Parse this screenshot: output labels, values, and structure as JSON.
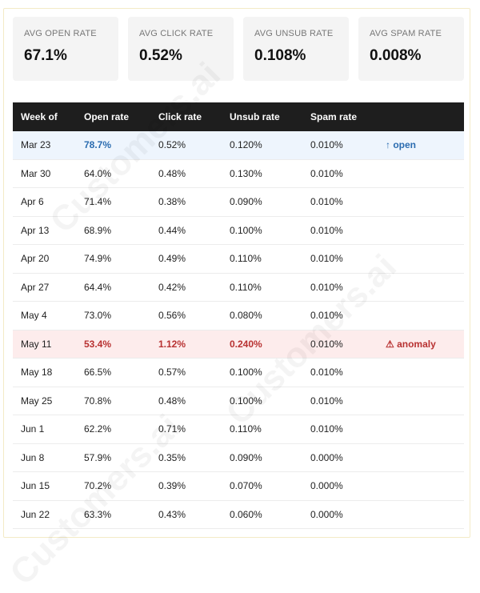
{
  "cards": [
    {
      "label": "AVG OPEN RATE",
      "value": "67.1%"
    },
    {
      "label": "AVG CLICK RATE",
      "value": "0.52%"
    },
    {
      "label": "AVG UNSUB RATE",
      "value": "0.108%"
    },
    {
      "label": "AVG SPAM RATE",
      "value": "0.008%"
    }
  ],
  "table": {
    "headers": [
      "Week of",
      "Open rate",
      "Click rate",
      "Unsub rate",
      "Spam rate",
      ""
    ],
    "rows": [
      {
        "week": "Mar 23",
        "open": "78.7%",
        "click": "0.52%",
        "unsub": "0.120%",
        "spam": "0.010%",
        "flag": "↑ open"
      },
      {
        "week": "Mar 30",
        "open": "64.0%",
        "click": "0.48%",
        "unsub": "0.130%",
        "spam": "0.010%",
        "flag": ""
      },
      {
        "week": "Apr 6",
        "open": "71.4%",
        "click": "0.38%",
        "unsub": "0.090%",
        "spam": "0.010%",
        "flag": ""
      },
      {
        "week": "Apr 13",
        "open": "68.9%",
        "click": "0.44%",
        "unsub": "0.100%",
        "spam": "0.010%",
        "flag": ""
      },
      {
        "week": "Apr 20",
        "open": "74.9%",
        "click": "0.49%",
        "unsub": "0.110%",
        "spam": "0.010%",
        "flag": ""
      },
      {
        "week": "Apr 27",
        "open": "64.4%",
        "click": "0.42%",
        "unsub": "0.110%",
        "spam": "0.010%",
        "flag": ""
      },
      {
        "week": "May 4",
        "open": "73.0%",
        "click": "0.56%",
        "unsub": "0.080%",
        "spam": "0.010%",
        "flag": ""
      },
      {
        "week": "May 11",
        "open": "53.4%",
        "click": "1.12%",
        "unsub": "0.240%",
        "spam": "0.010%",
        "flag": "⚠ anomaly"
      },
      {
        "week": "May 18",
        "open": "66.5%",
        "click": "0.57%",
        "unsub": "0.100%",
        "spam": "0.010%",
        "flag": ""
      },
      {
        "week": "May 25",
        "open": "70.8%",
        "click": "0.48%",
        "unsub": "0.100%",
        "spam": "0.010%",
        "flag": ""
      },
      {
        "week": "Jun 1",
        "open": "62.2%",
        "click": "0.71%",
        "unsub": "0.110%",
        "spam": "0.010%",
        "flag": ""
      },
      {
        "week": "Jun 8",
        "open": "57.9%",
        "click": "0.35%",
        "unsub": "0.090%",
        "spam": "0.000%",
        "flag": ""
      },
      {
        "week": "Jun 15",
        "open": "70.2%",
        "click": "0.39%",
        "unsub": "0.070%",
        "spam": "0.000%",
        "flag": ""
      },
      {
        "week": "Jun 22",
        "open": "63.3%",
        "click": "0.43%",
        "unsub": "0.060%",
        "spam": "0.000%",
        "flag": ""
      }
    ]
  },
  "watermark": "Customers.ai",
  "colors": {
    "header_bg": "#1e1e1e",
    "highlight_blue_bg": "#eef5fd",
    "highlight_blue_text": "#2b6cb0",
    "highlight_red_bg": "#fdecec",
    "highlight_red_text": "#b83232"
  }
}
